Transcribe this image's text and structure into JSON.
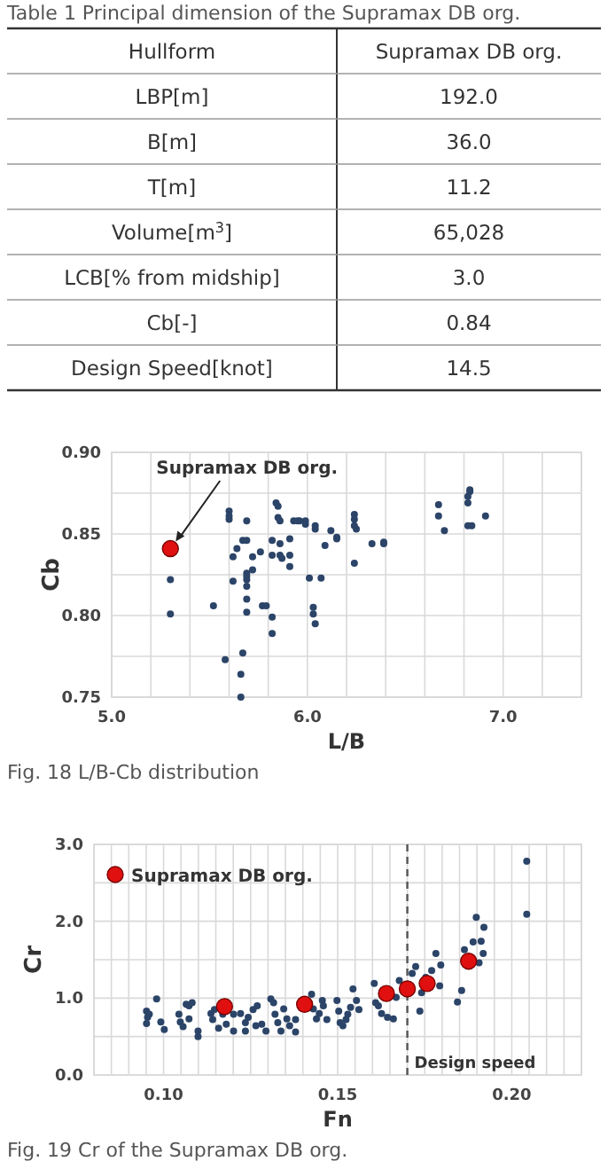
{
  "chart_data": [
    {
      "type": "other",
      "title": "Table 1 Principal dimension of the Supramax DB org.",
      "annotations": [
        "Hullform",
        "Supramax DB org.",
        "LBP[m]",
        "192.0",
        "B[m]",
        "36.0",
        "T[m]",
        "11.2",
        "Volume[m$^{3}$]",
        "65,028",
        "LCB[% from midship]",
        "3.0",
        "Cb[-]",
        "0.84",
        "Design Speed[knot]",
        "14.5"
      ]
    },
    {
      "type": "scatter",
      "xlabel": "L/B",
      "ylabel": "Cb",
      "xlim": [
        5,
        7.4
      ],
      "ylim": [
        0.75,
        0.9
      ],
      "grid": true,
      "marker": "circle",
      "legend": false,
      "xticks": [
        {
          "value": 5,
          "label": "5.0"
        },
        {
          "value": 5.2,
          "label": null
        },
        {
          "value": 5.4,
          "label": null
        },
        {
          "value": 5.6,
          "label": null
        },
        {
          "value": 5.8,
          "label": null
        },
        {
          "value": 6,
          "label": "6.0"
        },
        {
          "value": 6.2,
          "label": null
        },
        {
          "value": 6.4,
          "label": null
        },
        {
          "value": 6.6,
          "label": null
        },
        {
          "value": 6.8,
          "label": null
        },
        {
          "value": 7,
          "label": "7.0"
        },
        {
          "value": 7.2,
          "label": null
        },
        {
          "value": 7.4,
          "label": null
        }
      ],
      "yticks": [
        0.75,
        {
          "value": 0.775,
          "label": null
        },
        {
          "value": 0.8,
          "label": "0.80"
        },
        {
          "value": 0.825,
          "label": null
        },
        0.85,
        {
          "value": 0.875,
          "label": null
        },
        {
          "value": 0.9,
          "label": "0.90"
        }
      ],
      "series": [
        {
          "color": "#2b4468",
          "x": [
            5.3,
            5.3,
            5.52,
            5.58,
            5.6,
            5.6,
            5.6,
            5.62,
            5.62,
            5.64,
            5.66,
            5.66,
            5.67,
            5.67,
            5.69,
            5.69,
            5.69,
            5.69,
            5.69,
            5.69,
            5.69,
            5.69,
            5.72,
            5.72,
            5.76,
            5.77,
            5.79,
            5.82,
            5.82,
            5.82,
            5.82,
            5.84,
            5.85,
            5.85,
            5.86,
            5.86,
            5.86,
            5.87,
            5.91,
            5.91,
            5.91,
            5.93,
            5.95,
            5.96,
            5.99,
            5.99,
            6.01,
            6.03,
            6.03,
            6.04,
            6.04,
            6.04,
            6.07,
            6.09,
            6.12,
            6.15,
            6.15,
            6.24,
            6.24,
            6.24,
            6.24,
            6.25,
            6.33,
            6.39,
            6.39,
            6.67,
            6.67,
            6.7,
            6.82,
            6.82,
            6.83,
            6.83,
            6.82,
            6.84,
            6.91
          ],
          "values": [
            0.822,
            0.801,
            0.806,
            0.773,
            0.864,
            0.861,
            0.859,
            0.821,
            0.836,
            0.841,
            0.764,
            0.75,
            0.777,
            0.846,
            0.846,
            0.858,
            0.826,
            0.824,
            0.822,
            0.818,
            0.81,
            0.802,
            0.828,
            0.836,
            0.839,
            0.806,
            0.806,
            0.846,
            0.799,
            0.789,
            0.837,
            0.869,
            0.867,
            0.86,
            0.858,
            0.844,
            0.837,
            0.835,
            0.847,
            0.837,
            0.83,
            0.858,
            0.858,
            0.858,
            0.858,
            0.856,
            0.823,
            0.805,
            0.801,
            0.795,
            0.855,
            0.853,
            0.823,
            0.843,
            0.852,
            0.848,
            0.847,
            0.832,
            0.862,
            0.859,
            0.855,
            0.853,
            0.844,
            0.845,
            0.844,
            0.868,
            0.861,
            0.852,
            0.869,
            0.873,
            0.876,
            0.877,
            0.855,
            0.855,
            0.861
          ]
        },
        {
          "color": "#e01010",
          "x": [
            5.3
          ],
          "values": [
            0.841
          ]
        }
      ],
      "annotations": [
        {
          "text": "Supramax DB org.",
          "x": 5.3,
          "y": 0.841
        },
        "Fig. 18 L/B-Cb distribution"
      ]
    },
    {
      "type": "scatter",
      "xlabel": "Fn",
      "ylabel": "Cr",
      "xlim": [
        0.08,
        0.22
      ],
      "ylim": [
        0,
        3
      ],
      "grid": true,
      "marker": "circle",
      "legend": "top left",
      "xticks": [
        {
          "value": 0.08,
          "label": null
        },
        {
          "value": 0.085,
          "label": null
        },
        {
          "value": 0.09,
          "label": null
        },
        {
          "value": 0.095,
          "label": null
        },
        {
          "value": 0.1,
          "label": "0.10"
        },
        {
          "value": 0.105,
          "label": null
        },
        {
          "value": 0.11,
          "label": null
        },
        {
          "value": 0.115,
          "label": null
        },
        {
          "value": 0.12,
          "label": null
        },
        {
          "value": 0.125,
          "label": null
        },
        {
          "value": 0.13,
          "label": null
        },
        {
          "value": 0.135,
          "label": null
        },
        {
          "value": 0.14,
          "label": null
        },
        {
          "value": 0.145,
          "label": null
        },
        {
          "value": 0.15,
          "label": "0.15"
        },
        {
          "value": 0.155,
          "label": null
        },
        {
          "value": 0.16,
          "label": null
        },
        {
          "value": 0.165,
          "label": null
        },
        {
          "value": 0.17,
          "label": null
        },
        {
          "value": 0.175,
          "label": null
        },
        {
          "value": 0.18,
          "label": null
        },
        {
          "value": 0.185,
          "label": null
        },
        {
          "value": 0.19,
          "label": null
        },
        {
          "value": 0.195,
          "label": null
        },
        {
          "value": 0.2,
          "label": "0.20"
        },
        {
          "value": 0.205,
          "label": null
        },
        {
          "value": 0.21,
          "label": null
        },
        {
          "value": 0.215,
          "label": null
        },
        {
          "value": 0.22,
          "label": null
        }
      ],
      "yticks": [
        {
          "value": 0,
          "label": "0.0"
        },
        {
          "value": 0.5,
          "label": null
        },
        {
          "value": 1,
          "label": "1.0"
        },
        {
          "value": 1.5,
          "label": null
        },
        {
          "value": 2,
          "label": "2.0"
        },
        {
          "value": 2.5,
          "label": null
        },
        {
          "value": 3,
          "label": "3.0"
        }
      ],
      "series": [
        {
          "color": "#2b4468",
          "x": [
            0.0951,
            0.0954,
            0.0951,
            0.0959,
            0.098,
            0.0992,
            0.1002,
            0.1044,
            0.1048,
            0.1056,
            0.1065,
            0.1073,
            0.1082,
            0.1073,
            0.1099,
            0.1099,
            0.1136,
            0.1141,
            0.1146,
            0.1158,
            0.117,
            0.118,
            0.1201,
            0.1201,
            0.1221,
            0.1235,
            0.1235,
            0.1243,
            0.1257,
            0.1269,
            0.1265,
            0.1282,
            0.1294,
            0.1308,
            0.1316,
            0.132,
            0.1328,
            0.1337,
            0.1345,
            0.1354,
            0.1362,
            0.1379,
            0.1379,
            0.1425,
            0.143,
            0.1439,
            0.1447,
            0.1456,
            0.1459,
            0.1469,
            0.1498,
            0.1503,
            0.1507,
            0.1515,
            0.1524,
            0.1529,
            0.1537,
            0.1544,
            0.1554,
            0.1561,
            0.1605,
            0.1609,
            0.1617,
            0.1626,
            0.1643,
            0.166,
            0.1668,
            0.1677,
            0.1714,
            0.1724,
            0.1736,
            0.1741,
            0.1753,
            0.177,
            0.1782,
            0.1796,
            0.1793,
            0.1844,
            0.1856,
            0.1864,
            0.1889,
            0.1898,
            0.1912,
            0.192,
            0.1918,
            0.1906,
            0.2043,
            0.2043
          ],
          "values": [
            0.83,
            0.75,
            0.67,
            0.79,
            0.99,
            0.69,
            0.59,
            0.79,
            0.69,
            0.63,
            0.92,
            0.9,
            0.94,
            0.73,
            0.57,
            0.5,
            0.8,
            0.72,
            0.85,
            0.61,
            0.79,
            0.66,
            0.57,
            0.79,
            0.8,
            0.68,
            0.57,
            0.75,
            0.85,
            0.9,
            0.64,
            0.66,
            0.57,
            0.99,
            0.94,
            0.79,
            0.68,
            0.57,
            0.86,
            0.73,
            0.64,
            0.72,
            0.56,
            1.05,
            0.86,
            0.73,
            0.8,
            0.97,
            0.9,
            0.72,
            0.97,
            0.83,
            0.68,
            0.64,
            0.72,
            0.79,
            0.88,
            1.12,
            0.97,
            0.85,
            1.19,
            0.94,
            0.9,
            0.8,
            0.75,
            0.73,
            1.01,
            1.23,
            1.32,
            1.41,
            0.83,
            1.07,
            1.27,
            1.36,
            1.58,
            1.43,
            1.16,
            0.95,
            1.1,
            1.63,
            1.73,
            2.05,
            1.74,
            1.92,
            1.58,
            1.46,
            2.78,
            2.09
          ]
        },
        {
          "name": "Supramax DB org.",
          "color": "#e01010",
          "x": [
            0.1175,
            0.1405,
            0.164,
            0.17,
            0.1757,
            0.1876
          ],
          "values": [
            0.89,
            0.92,
            1.06,
            1.12,
            1.19,
            1.48
          ]
        }
      ],
      "ref_lines": [
        {
          "axis": "x",
          "value": 0.17,
          "label": "Design speed",
          "line_style": "dashed",
          "color": "#555555"
        }
      ],
      "annotations": [
        "Fig. 19 Cr of the Supramax DB org."
      ]
    }
  ]
}
